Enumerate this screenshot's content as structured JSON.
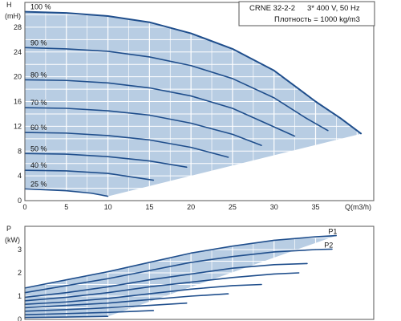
{
  "colors": {
    "envelope": "#b8cde3",
    "curve": "#1f4e8c",
    "grid": "#ffffff",
    "frame": "#555555"
  },
  "info": {
    "model": "CRNE 32-2-2",
    "supply": "3* 400 V, 50 Hz",
    "density": "Плотность = 1000 kg/m3"
  },
  "chart_data": [
    {
      "type": "line",
      "title": "",
      "xlabel": "Q(m3/h)",
      "ylabel": "H",
      "yunit": "(mH)",
      "xlim": [
        0,
        42
      ],
      "ylim": [
        0,
        32
      ],
      "xticks": [
        0,
        5,
        10,
        15,
        20,
        25,
        30,
        35
      ],
      "yticks": [
        0,
        4,
        8,
        12,
        16,
        20,
        24,
        28
      ],
      "grid": true,
      "series": [
        {
          "name": "100 %",
          "x": [
            0,
            5,
            10,
            15,
            20,
            25,
            30,
            35,
            38,
            40.5
          ],
          "y": [
            30.5,
            30.3,
            29.8,
            28.8,
            27.0,
            24.5,
            21.0,
            16.0,
            13.3,
            10.8
          ]
        },
        {
          "name": "90 %",
          "x": [
            0,
            5,
            10,
            15,
            20,
            25,
            30,
            34,
            36.5
          ],
          "y": [
            24.7,
            24.5,
            24.1,
            23.2,
            21.8,
            19.7,
            16.6,
            13.2,
            11.3
          ]
        },
        {
          "name": "80 %",
          "x": [
            0,
            5,
            10,
            15,
            20,
            25,
            29,
            32.5
          ],
          "y": [
            19.5,
            19.4,
            19.0,
            18.2,
            16.9,
            14.9,
            12.5,
            10.4
          ]
        },
        {
          "name": "70 %",
          "x": [
            0,
            5,
            10,
            15,
            20,
            25,
            28.5
          ],
          "y": [
            15.0,
            14.9,
            14.5,
            13.8,
            12.5,
            10.7,
            8.9
          ]
        },
        {
          "name": "60 %",
          "x": [
            0,
            5,
            10,
            15,
            20,
            24.5
          ],
          "y": [
            11.0,
            10.9,
            10.5,
            9.8,
            8.6,
            7.0
          ]
        },
        {
          "name": "50 %",
          "x": [
            0,
            5,
            10,
            15,
            19.5
          ],
          "y": [
            7.6,
            7.5,
            7.1,
            6.4,
            5.4
          ]
        },
        {
          "name": "40 %",
          "x": [
            0,
            5,
            10,
            15.5
          ],
          "y": [
            4.9,
            4.8,
            4.4,
            3.3
          ]
        },
        {
          "name": "25 %",
          "x": [
            0,
            5,
            8,
            10
          ],
          "y": [
            1.9,
            1.6,
            1.2,
            0.7
          ]
        }
      ]
    },
    {
      "type": "line",
      "title": "",
      "xlabel": "",
      "ylabel": "P",
      "yunit": "(kW)",
      "xlim": [
        0,
        42
      ],
      "ylim": [
        0,
        4
      ],
      "yticks": [
        0,
        1,
        2,
        3
      ],
      "grid": true,
      "series": [
        {
          "name": "P1",
          "x": [
            0,
            5,
            10,
            15,
            20,
            25,
            30,
            35,
            37.5
          ],
          "y": [
            1.35,
            1.7,
            2.05,
            2.45,
            2.85,
            3.15,
            3.4,
            3.55,
            3.6
          ]
        },
        {
          "name": "P2",
          "x": [
            0,
            5,
            10,
            15,
            20,
            25,
            30,
            35,
            37
          ],
          "y": [
            1.15,
            1.45,
            1.75,
            2.1,
            2.45,
            2.7,
            2.9,
            3.0,
            3.02
          ]
        },
        {
          "name": "",
          "x": [
            0,
            5,
            10,
            15,
            20,
            25,
            30,
            34
          ],
          "y": [
            0.95,
            1.15,
            1.4,
            1.7,
            1.95,
            2.2,
            2.35,
            2.4
          ]
        },
        {
          "name": "",
          "x": [
            0,
            5,
            10,
            15,
            20,
            25,
            30,
            33
          ],
          "y": [
            0.8,
            0.95,
            1.15,
            1.4,
            1.6,
            1.8,
            1.95,
            2.0
          ]
        },
        {
          "name": "",
          "x": [
            0,
            5,
            10,
            15,
            20,
            25,
            28.5
          ],
          "y": [
            0.65,
            0.75,
            0.9,
            1.1,
            1.3,
            1.45,
            1.5
          ]
        },
        {
          "name": "",
          "x": [
            0,
            5,
            10,
            15,
            20,
            24.5
          ],
          "y": [
            0.5,
            0.6,
            0.7,
            0.85,
            1.0,
            1.1
          ]
        },
        {
          "name": "",
          "x": [
            0,
            5,
            10,
            15,
            19.5
          ],
          "y": [
            0.35,
            0.42,
            0.5,
            0.6,
            0.7
          ]
        },
        {
          "name": "",
          "x": [
            0,
            5,
            10,
            15.5
          ],
          "y": [
            0.2,
            0.25,
            0.3,
            0.38
          ]
        },
        {
          "name": "",
          "x": [
            0,
            5,
            10
          ],
          "y": [
            0.08,
            0.1,
            0.13
          ]
        }
      ]
    }
  ]
}
